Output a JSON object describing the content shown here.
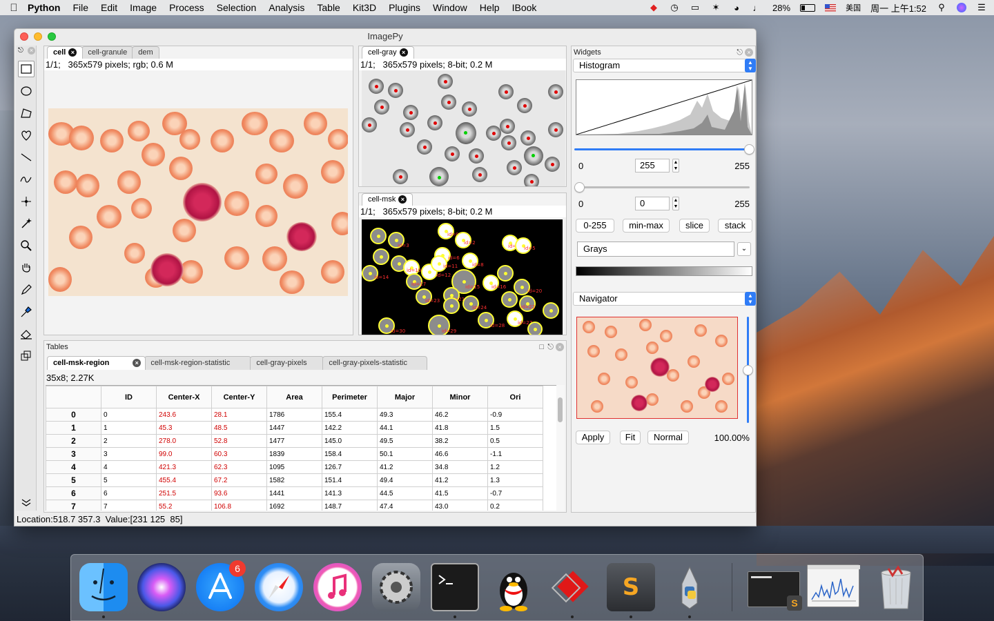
{
  "menubar": {
    "app_name": "Python",
    "items": [
      "File",
      "Edit",
      "Image",
      "Process",
      "Selection",
      "Analysis",
      "Table",
      "Kit3D",
      "Plugins",
      "Window",
      "Help",
      "IBook"
    ],
    "battery": "28%",
    "input_source": "美国",
    "clock": "周一 上午1:52"
  },
  "window": {
    "title": "ImagePy",
    "status": "Location:518.7 357.3  Value:[231 125  85]"
  },
  "image_panel_1": {
    "tabs": [
      "cell",
      "cell-granule",
      "dem"
    ],
    "info": "1/1;   365x579 pixels; rgb; 0.6 M"
  },
  "image_panel_2": {
    "tabs": [
      "cell-gray"
    ],
    "info": "1/1;   365x579 pixels; 8-bit; 0.2 M"
  },
  "image_panel_3": {
    "tabs": [
      "cell-msk"
    ],
    "info": "1/1;   365x579 pixels; 8-bit; 0.2 M"
  },
  "tables": {
    "title": "Tables",
    "tabs": [
      "cell-msk-region",
      "cell-msk-region-statistic",
      "cell-gray-pixels",
      "cell-gray-pixels-statistic"
    ],
    "info": "35x8; 2.27K",
    "columns": [
      "ID",
      "Center-X",
      "Center-Y",
      "Area",
      "Perimeter",
      "Major",
      "Minor",
      "Ori"
    ],
    "rows": [
      {
        "idx": "0",
        "cells": [
          "0",
          "243.6",
          "28.1",
          "1786",
          "155.4",
          "49.3",
          "46.2",
          "-0.9"
        ]
      },
      {
        "idx": "1",
        "cells": [
          "1",
          "45.3",
          "48.5",
          "1447",
          "142.2",
          "44.1",
          "41.8",
          "1.5"
        ]
      },
      {
        "idx": "2",
        "cells": [
          "2",
          "278.0",
          "52.8",
          "1477",
          "145.0",
          "49.5",
          "38.2",
          "0.5"
        ]
      },
      {
        "idx": "3",
        "cells": [
          "3",
          "99.0",
          "60.3",
          "1839",
          "158.4",
          "50.1",
          "46.6",
          "-1.1"
        ]
      },
      {
        "idx": "4",
        "cells": [
          "4",
          "421.3",
          "62.3",
          "1095",
          "126.7",
          "41.2",
          "34.8",
          "1.2"
        ]
      },
      {
        "idx": "5",
        "cells": [
          "5",
          "455.4",
          "67.2",
          "1582",
          "151.4",
          "49.4",
          "41.2",
          "1.3"
        ]
      },
      {
        "idx": "6",
        "cells": [
          "6",
          "251.5",
          "93.6",
          "1441",
          "141.3",
          "44.5",
          "41.5",
          "-0.7"
        ]
      },
      {
        "idx": "7",
        "cells": [
          "7",
          "55.2",
          "106.8",
          "1692",
          "148.7",
          "47.4",
          "43.0",
          "0.2"
        ]
      }
    ]
  },
  "widgets": {
    "title": "Widgets",
    "histogram": {
      "selector": "Histogram",
      "high_min": "0",
      "high_value": "255",
      "high_max": "255",
      "low_min": "0",
      "low_value": "0",
      "low_max": "255",
      "buttons": [
        "0-255",
        "min-max",
        "slice",
        "stack"
      ],
      "colormap": "Grays",
      "upper_slider_fraction": 1.0,
      "lower_slider_fraction": 0.0
    },
    "navigator": {
      "selector": "Navigator",
      "buttons": [
        "Apply",
        "Fit",
        "Normal"
      ],
      "zoom": "100.00%",
      "zoom_slider_fraction": 0.5
    }
  },
  "dock": {
    "apps": [
      "finder-icon",
      "siri-icon",
      "app-store-icon",
      "safari-icon",
      "itunes-icon",
      "system-preferences-icon",
      "terminal-icon",
      "qq-icon",
      "parallels-icon",
      "sublime-text-icon",
      "python-launcher-icon",
      "terminal-window-thumbnail",
      "figure-window-thumbnail",
      "trash-icon"
    ],
    "app_store_badge": "6"
  },
  "colors": {
    "accent": "#2f7cf6",
    "mask_outline": "#ffff33",
    "table_red": "#d00000"
  }
}
